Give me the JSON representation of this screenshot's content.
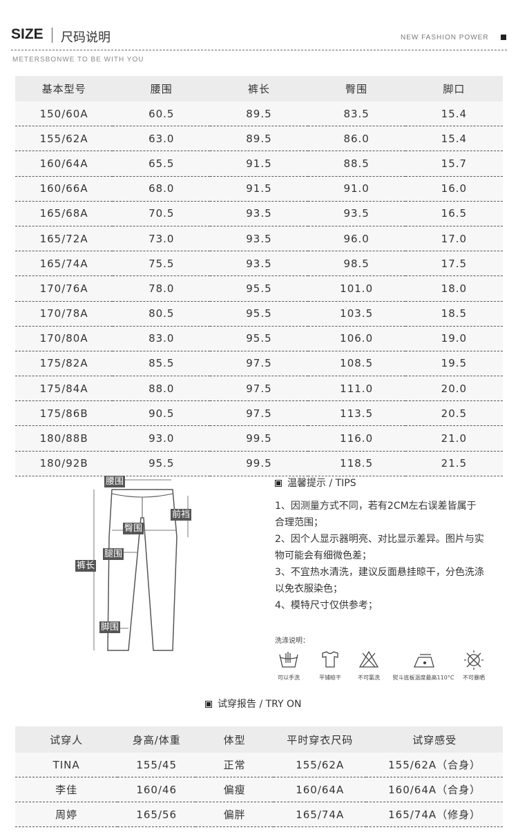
{
  "header": {
    "title": "SIZE",
    "title_cn": "尺码说明",
    "tagline": "NEW FASHION POWER",
    "subtitle": "METERSBONWE TO BE WITH YOU"
  },
  "size_table": {
    "columns": [
      "基本型号",
      "腰围",
      "裤长",
      "臀围",
      "脚口"
    ],
    "rows": [
      [
        "150/60A",
        "60.5",
        "89.5",
        "83.5",
        "15.4"
      ],
      [
        "155/62A",
        "63.0",
        "89.5",
        "86.0",
        "15.4"
      ],
      [
        "160/64A",
        "65.5",
        "91.5",
        "88.5",
        "15.7"
      ],
      [
        "160/66A",
        "68.0",
        "91.5",
        "91.0",
        "16.0"
      ],
      [
        "165/68A",
        "70.5",
        "93.5",
        "93.5",
        "16.5"
      ],
      [
        "165/72A",
        "73.0",
        "93.5",
        "96.0",
        "17.0"
      ],
      [
        "165/74A",
        "75.5",
        "93.5",
        "98.5",
        "17.5"
      ],
      [
        "170/76A",
        "78.0",
        "95.5",
        "101.0",
        "18.0"
      ],
      [
        "170/78A",
        "80.5",
        "95.5",
        "103.5",
        "18.5"
      ],
      [
        "170/80A",
        "83.0",
        "95.5",
        "106.0",
        "19.0"
      ],
      [
        "175/82A",
        "85.5",
        "97.5",
        "108.5",
        "19.5"
      ],
      [
        "175/84A",
        "88.0",
        "97.5",
        "111.0",
        "20.0"
      ],
      [
        "175/86B",
        "90.5",
        "97.5",
        "113.5",
        "20.5"
      ],
      [
        "180/88B",
        "93.0",
        "99.5",
        "116.0",
        "21.0"
      ],
      [
        "180/92B",
        "95.5",
        "99.5",
        "118.5",
        "21.5"
      ]
    ]
  },
  "diagram": {
    "labels": {
      "waist": "腰围",
      "front_rise": "前裆",
      "hip": "臀围",
      "thigh": "腿围",
      "length": "裤长",
      "hem": "脚围"
    }
  },
  "tips": {
    "title": "温馨提示 / TIPS",
    "items": [
      "1、因测量方式不同，若有2CM左右误差皆属于合理范围；",
      "2、因个人显示器明亮、对比显示差异。图片与实物可能会有细微色差；",
      "3、不宜热水清洗，建议反面悬挂晾干，分色洗涤以免衣服染色；",
      "4、模特尺寸仅供参考；"
    ]
  },
  "care": {
    "title": "洗涤说明：",
    "items": [
      {
        "icon": "hand-wash-icon",
        "label": "可以手洗"
      },
      {
        "icon": "dry-flat-icon",
        "label": "平铺晾干"
      },
      {
        "icon": "no-bleach-icon",
        "label": "不可氯洗"
      },
      {
        "icon": "iron-icon",
        "label": "熨斗底板温度最高110°C"
      },
      {
        "icon": "no-sun-icon",
        "label": "不可暴晒"
      }
    ]
  },
  "try_on": {
    "title": "试穿报告 / TRY ON",
    "columns": [
      "试穿人",
      "身高/体重",
      "体型",
      "平时穿衣尺码",
      "试穿感受"
    ],
    "rows": [
      [
        "TINA",
        "155/45",
        "正常",
        "155/62A",
        "155/62A（合身）"
      ],
      [
        "李佳",
        "160/46",
        "偏瘦",
        "160/64A",
        "160/64A（合身）"
      ],
      [
        "周婷",
        "165/56",
        "偏胖",
        "165/74A",
        "165/74A（修身）"
      ]
    ]
  }
}
